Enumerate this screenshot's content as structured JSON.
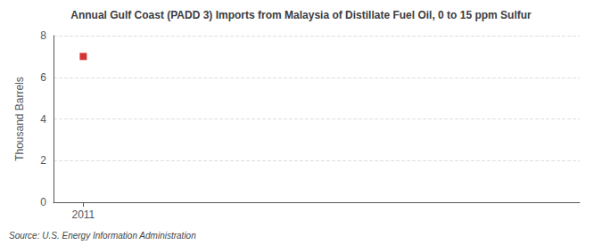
{
  "chart_data": {
    "type": "scatter",
    "title": "Annual Gulf Coast (PADD 3) Imports from Malaysia of Distillate Fuel Oil, 0 to 15 ppm Sulfur",
    "ylabel": "Thousand Barrels",
    "source": "Source: U.S. Energy Information Administration",
    "x": [
      2011
    ],
    "values": [
      7
    ],
    "color": "#cc0000",
    "marker": "square",
    "xlim": [
      2010.7,
      2016.0
    ],
    "xticks": [
      2011
    ],
    "ylim": [
      0,
      8
    ],
    "yticks": [
      0,
      2,
      4,
      6,
      8
    ],
    "grid": true
  }
}
